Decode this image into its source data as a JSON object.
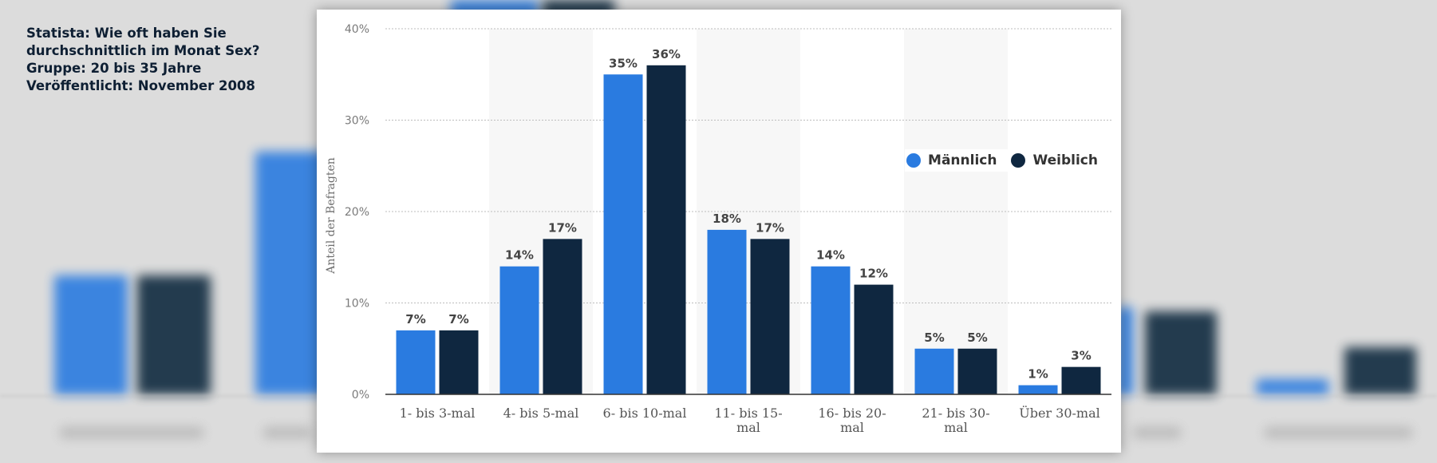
{
  "caption": {
    "lines": [
      "Statista: Wie oft haben Sie",
      "durchschnittlich im Monat Sex?",
      "Gruppe: 20 bis 35 Jahre",
      "Veröffentlicht: November 2008"
    ]
  },
  "legend": {
    "male": "Männlich",
    "female": "Weiblich"
  },
  "colors": {
    "male": "#2a7be0",
    "female": "#0f2740",
    "grid": "#bdbdbd",
    "band": "#f7f7f7"
  },
  "chart_data": {
    "type": "bar",
    "ylabel": "Anteil der Befragten",
    "ylim": [
      0,
      40
    ],
    "yticks": [
      "0%",
      "10%",
      "20%",
      "30%",
      "40%"
    ],
    "categories": [
      "1- bis 3-mal",
      "4- bis 5-mal",
      "6- bis 10-mal",
      "11- bis 15- mal",
      "16- bis 20- mal",
      "21- bis 30- mal",
      "Über 30-mal"
    ],
    "category_lines": [
      [
        "1- bis 3-mal"
      ],
      [
        "4- bis 5-mal"
      ],
      [
        "6- bis 10-mal"
      ],
      [
        "11- bis 15-",
        "mal"
      ],
      [
        "16- bis 20-",
        "mal"
      ],
      [
        "21- bis 30-",
        "mal"
      ],
      [
        "Über 30-mal"
      ]
    ],
    "series": [
      {
        "name": "Männlich",
        "values": [
          7,
          14,
          35,
          18,
          14,
          5,
          1
        ],
        "labels": [
          "7%",
          "14%",
          "35%",
          "18%",
          "14%",
          "5%",
          "1%"
        ]
      },
      {
        "name": "Weiblich",
        "values": [
          7,
          17,
          36,
          17,
          12,
          5,
          3
        ],
        "labels": [
          "7%",
          "17%",
          "36%",
          "17%",
          "12%",
          "5%",
          "3%"
        ]
      }
    ],
    "grid": true,
    "legend_position": "right"
  }
}
